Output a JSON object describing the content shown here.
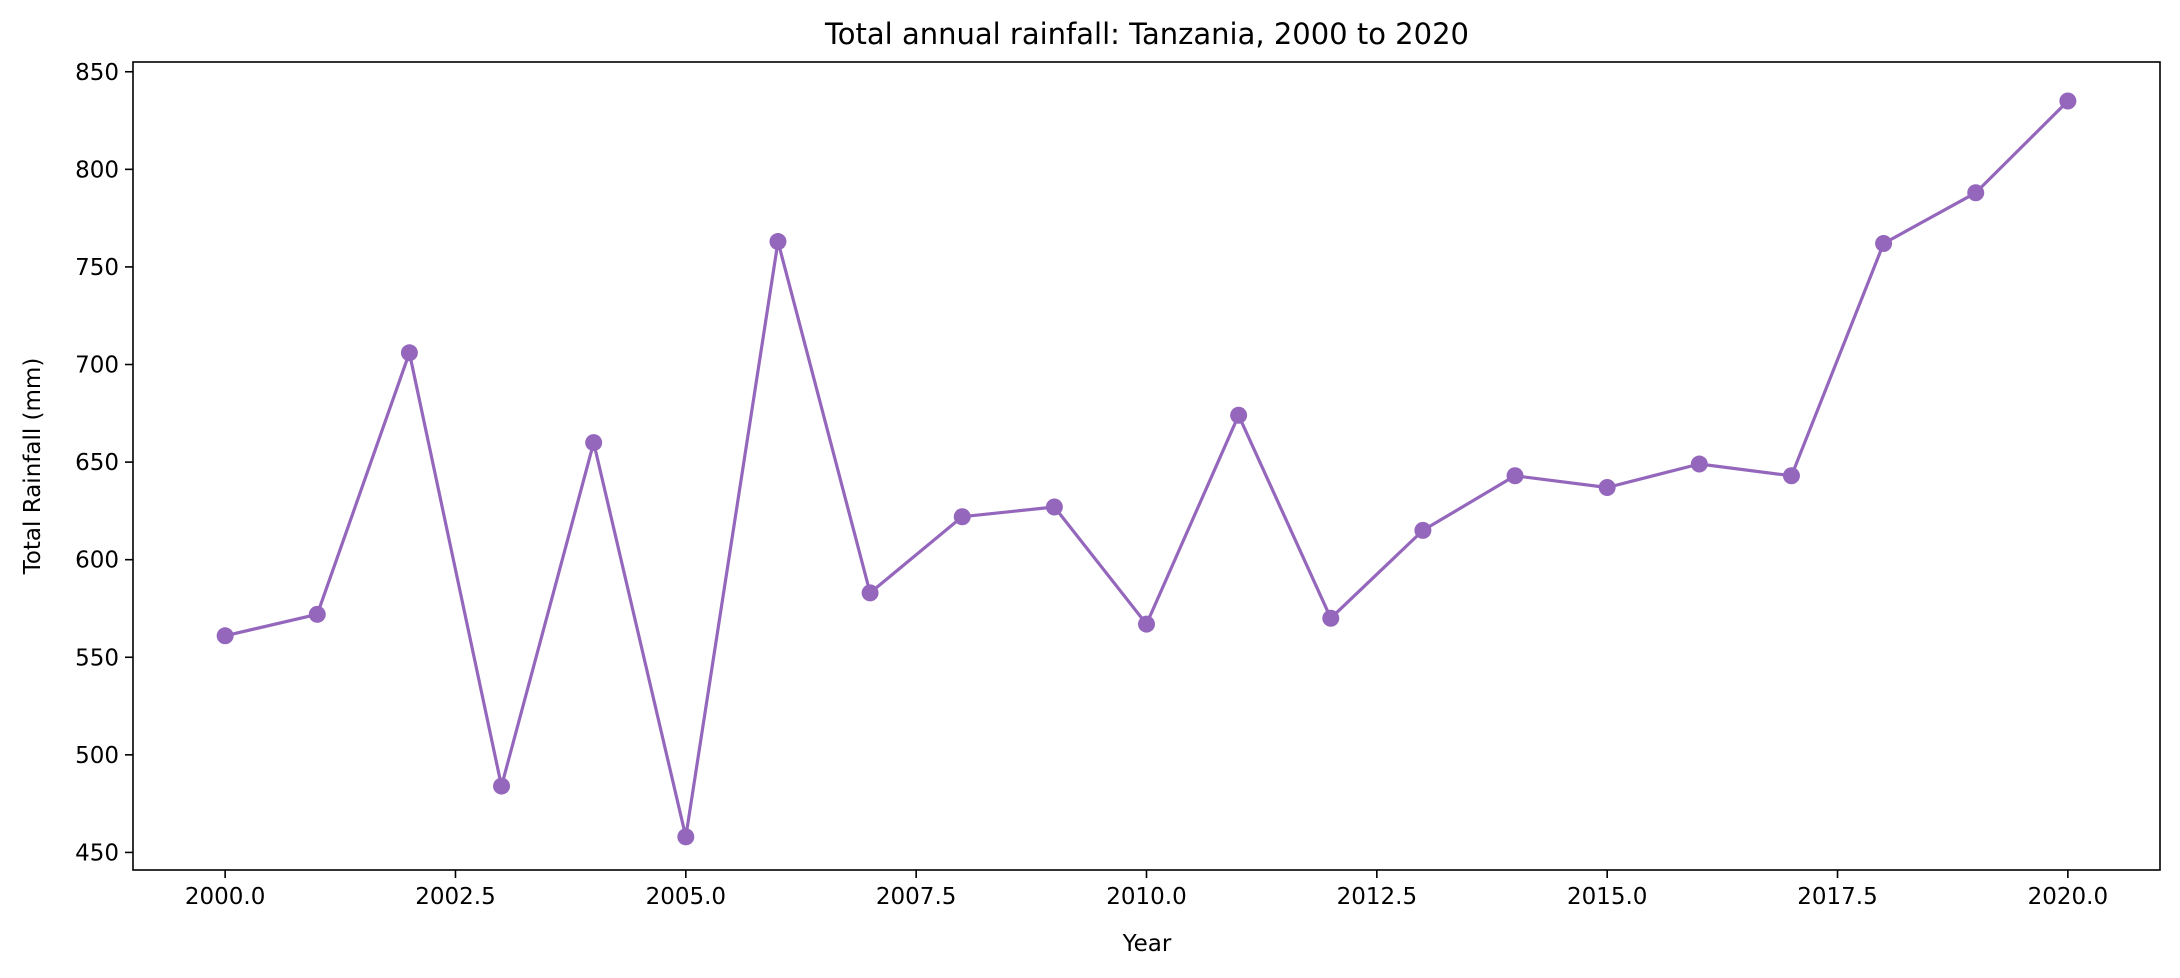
{
  "chart_data": {
    "type": "line",
    "title": "Total annual rainfall: Tanzania, 2000 to 2020",
    "xlabel": "Year",
    "ylabel": "Total Rainfall (mm)",
    "xlim": [
      1999.0,
      2021.0
    ],
    "ylim": [
      441,
      855
    ],
    "xticks": [
      2000.0,
      2002.5,
      2005.0,
      2007.5,
      2010.0,
      2012.5,
      2015.0,
      2017.5,
      2020.0
    ],
    "xtick_labels": [
      "2000.0",
      "2002.5",
      "2005.0",
      "2007.5",
      "2010.0",
      "2012.5",
      "2015.0",
      "2017.5",
      "2020.0"
    ],
    "yticks": [
      450,
      500,
      550,
      600,
      650,
      700,
      750,
      800,
      850
    ],
    "ytick_labels": [
      "450",
      "500",
      "550",
      "600",
      "650",
      "700",
      "750",
      "800",
      "850"
    ],
    "grid": false,
    "legend": false,
    "color": "#9467bd",
    "series": [
      {
        "x": [
          2000,
          2001,
          2002,
          2003,
          2004,
          2005,
          2006,
          2007,
          2008,
          2009,
          2010,
          2011,
          2012,
          2013,
          2014,
          2015,
          2016,
          2017,
          2018,
          2019,
          2020
        ],
        "values": [
          561,
          572,
          706,
          484,
          660,
          458,
          763,
          583,
          622,
          627,
          567,
          674,
          570,
          615,
          643,
          637,
          649,
          643,
          762,
          788,
          835
        ]
      }
    ]
  }
}
